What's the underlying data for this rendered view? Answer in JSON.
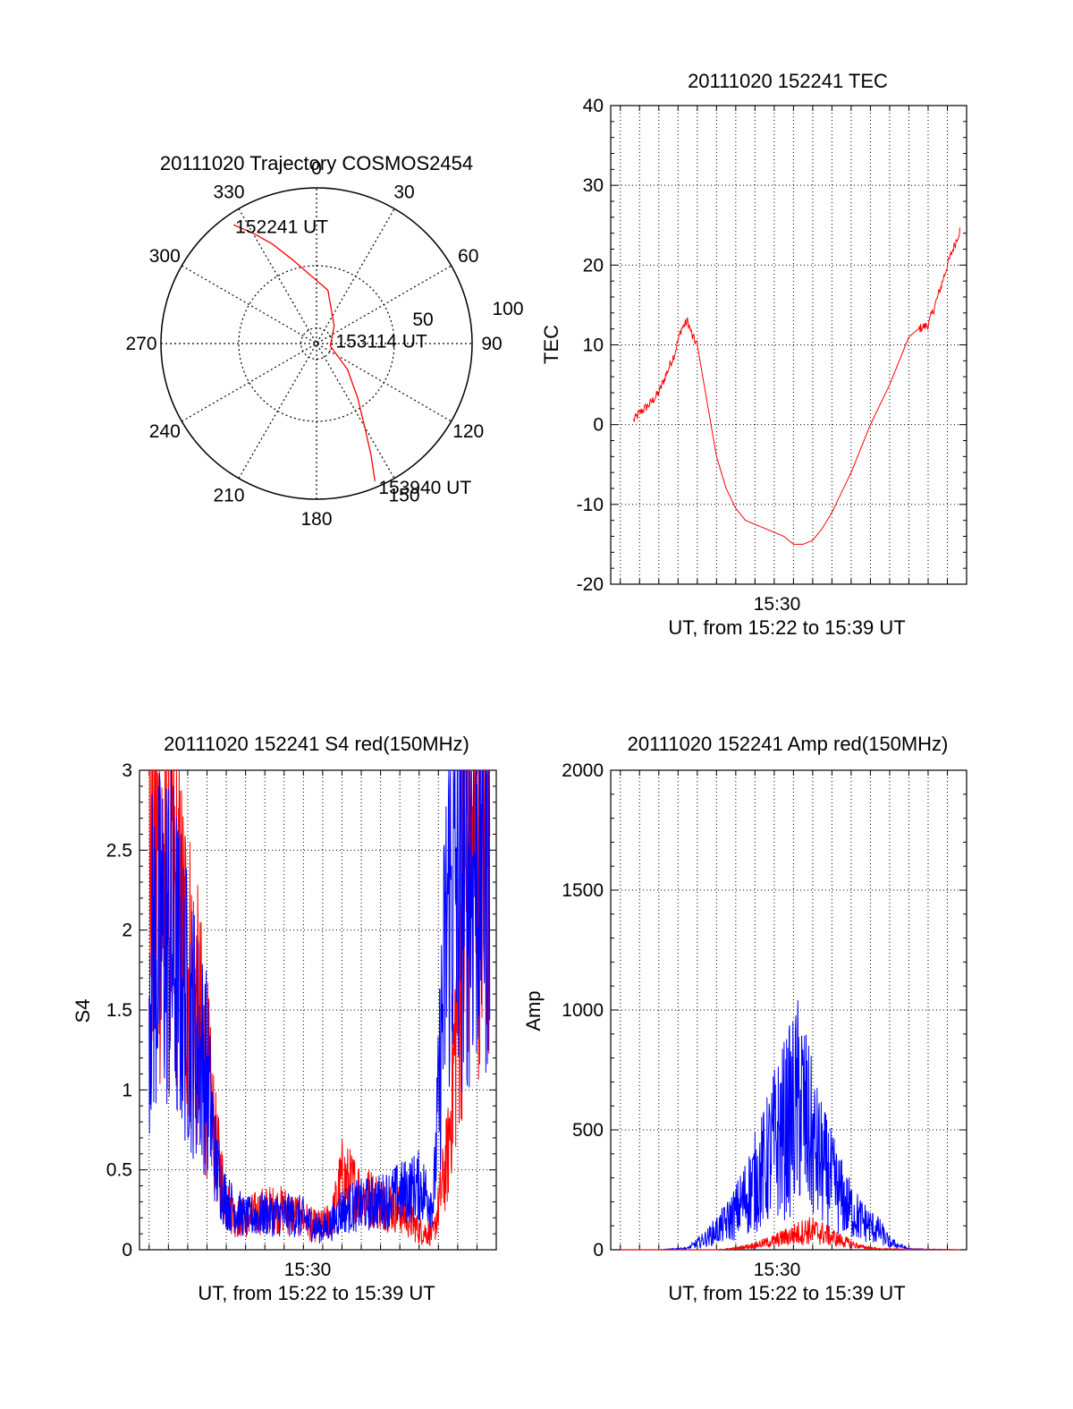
{
  "colors": {
    "red": "#ff0000",
    "blue": "#0000ff",
    "axis": "#000000"
  },
  "chart_data": [
    {
      "type": "polar",
      "title": "20111020 Trajectory COSMOS2454",
      "angle_labels": [
        "0",
        "30",
        "60",
        "90",
        "120",
        "150",
        "180",
        "210",
        "240",
        "270",
        "300",
        "330"
      ],
      "radius_labels": [
        "50",
        "100"
      ],
      "rlim": [
        0,
        100
      ],
      "grid": true,
      "series": [
        {
          "color": "#ff0000",
          "points": [
            [
              -35,
              93
            ],
            [
              -30,
              82
            ],
            [
              -24,
              70
            ],
            [
              -16,
              56
            ],
            [
              -5,
              44
            ],
            [
              12,
              35
            ],
            [
              45,
              16
            ],
            [
              100,
              9
            ],
            [
              130,
              26
            ],
            [
              143,
              44
            ],
            [
              150,
              62
            ],
            [
              154,
              80
            ],
            [
              157,
              96
            ]
          ]
        }
      ],
      "annotations": [
        {
          "text": "152241 UT",
          "angle": -35,
          "r": 93
        },
        {
          "text": "153114 UT",
          "angle": 100,
          "r": 9
        },
        {
          "text": "153940 UT",
          "angle": 157,
          "r": 96
        }
      ]
    },
    {
      "type": "line",
      "title": "20111020 152241 TEC",
      "ylabel": "TEC",
      "xlabel": "UT, from 15:22 to 15:39 UT",
      "xtick_labels": [
        "15:30"
      ],
      "xlim": [
        "15:21:30",
        "15:40:00"
      ],
      "ylim": [
        -20,
        40
      ],
      "yticks": [
        -20,
        -10,
        0,
        10,
        20,
        30,
        40
      ],
      "grid": true,
      "series": [
        {
          "color": "#ff0000",
          "x": [
            "15:22:41",
            "15:23:00",
            "15:23:30",
            "15:24:00",
            "15:24:30",
            "15:24:50",
            "15:25:10",
            "15:25:30",
            "15:25:45",
            "15:26:00",
            "15:26:30",
            "15:27:00",
            "15:27:30",
            "15:28:00",
            "15:28:30",
            "15:29:00",
            "15:29:30",
            "15:30:00",
            "15:30:30",
            "15:31:00",
            "15:31:30",
            "15:32:00",
            "15:32:30",
            "15:33:00",
            "15:33:30",
            "15:34:00",
            "15:34:30",
            "15:35:00",
            "15:35:30",
            "15:36:00",
            "15:36:30",
            "15:37:00",
            "15:37:30",
            "15:38:00",
            "15:38:30",
            "15:39:00",
            "15:39:40"
          ],
          "y": [
            0.5,
            1.5,
            2.5,
            4,
            7,
            9,
            12,
            13,
            11,
            10,
            3,
            -4,
            -8,
            -10.5,
            -12,
            -12.5,
            -13,
            -13.5,
            -14,
            -15,
            -15,
            -14.5,
            -13,
            -11,
            -8.5,
            -6,
            -3,
            0,
            2.5,
            5,
            8,
            11,
            12,
            12.5,
            16,
            20,
            24.5
          ]
        }
      ]
    },
    {
      "type": "line",
      "title": "20111020 152241 S4 red(150MHz)",
      "ylabel": "S4",
      "xlabel": "UT, from 15:22 to 15:39 UT",
      "xtick_labels": [
        "15:30"
      ],
      "xlim": [
        "15:21:30",
        "15:40:00"
      ],
      "ylim": [
        0,
        3
      ],
      "yticks": [
        0,
        0.5,
        1,
        1.5,
        2,
        2.5,
        3
      ],
      "grid": true,
      "series": [
        {
          "name": "",
          "color": "#ff0000",
          "x": [
            "15:22:00",
            "15:23:00",
            "15:24:00",
            "15:25:00",
            "15:25:30",
            "15:26:00",
            "15:26:30",
            "15:27:00",
            "15:28:00",
            "15:29:00",
            "15:30:00",
            "15:30:30",
            "15:31:00",
            "15:31:30",
            "15:32:00",
            "15:33:00",
            "15:34:00",
            "15:35:00",
            "15:36:00",
            "15:36:45",
            "15:37:30",
            "15:38:30",
            "15:39:40"
          ],
          "y": [
            2.6,
            2.2,
            1.8,
            1.1,
            0.6,
            0.3,
            0.2,
            0.2,
            0.25,
            0.25,
            0.2,
            0.15,
            0.15,
            0.2,
            0.45,
            0.35,
            0.3,
            0.25,
            0.12,
            0.1,
            0.6,
            2.5,
            2.8
          ]
        },
        {
          "name": "",
          "color": "#0000ff",
          "x": [
            "15:22:00",
            "15:23:00",
            "15:24:00",
            "15:25:00",
            "15:25:30",
            "15:26:00",
            "15:26:30",
            "15:27:00",
            "15:28:00",
            "15:29:00",
            "15:30:00",
            "15:30:30",
            "15:31:00",
            "15:31:30",
            "15:32:00",
            "15:33:00",
            "15:34:00",
            "15:35:00",
            "15:36:00",
            "15:36:45",
            "15:37:30",
            "15:38:30",
            "15:39:40"
          ],
          "y": [
            1.8,
            2.0,
            1.5,
            1.1,
            0.5,
            0.3,
            0.25,
            0.2,
            0.22,
            0.22,
            0.2,
            0.15,
            0.13,
            0.17,
            0.25,
            0.28,
            0.3,
            0.35,
            0.4,
            0.3,
            2.2,
            2.4,
            2.6
          ]
        }
      ]
    },
    {
      "type": "area",
      "title": "20111020 152241 Amp red(150MHz)",
      "ylabel": "Amp",
      "xlabel": "UT, from 15:22 to 15:39 UT",
      "xtick_labels": [
        "15:30"
      ],
      "xlim": [
        "15:21:30",
        "15:40:00"
      ],
      "ylim": [
        0,
        2000
      ],
      "yticks": [
        0,
        500,
        1000,
        1500,
        2000
      ],
      "grid": true,
      "series": [
        {
          "name": "",
          "color": "#0000ff",
          "x": [
            "15:22:00",
            "15:24:00",
            "15:25:30",
            "15:26:30",
            "15:27:30",
            "15:28:00",
            "15:28:45",
            "15:29:30",
            "15:30:00",
            "15:30:30",
            "15:31:00",
            "15:31:20",
            "15:31:45",
            "15:32:15",
            "15:33:00",
            "15:33:45",
            "15:34:30",
            "15:35:30",
            "15:36:00",
            "15:37:00",
            "15:39:40"
          ],
          "y": [
            0,
            0,
            10,
            80,
            180,
            250,
            400,
            550,
            700,
            800,
            900,
            1000,
            800,
            620,
            450,
            300,
            200,
            120,
            50,
            5,
            0
          ]
        },
        {
          "name": "",
          "color": "#ff0000",
          "x": [
            "15:22:00",
            "15:27:00",
            "15:28:00",
            "15:29:00",
            "15:30:00",
            "15:31:00",
            "15:31:45",
            "15:32:30",
            "15:33:30",
            "15:34:30",
            "15:35:30",
            "15:39:40"
          ],
          "y": [
            0,
            0,
            10,
            30,
            60,
            100,
            130,
            110,
            60,
            20,
            5,
            0
          ]
        }
      ]
    }
  ]
}
